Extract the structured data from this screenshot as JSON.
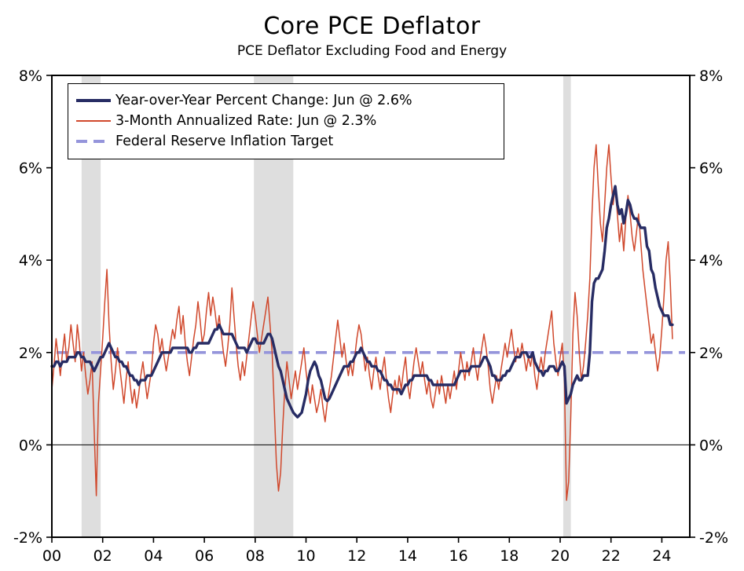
{
  "header": {
    "title": "Core PCE Deflator",
    "subtitle": "PCE Deflator Excluding Food and Energy"
  },
  "legend": {
    "items": [
      {
        "id": "yoy",
        "label": "Year-over-Year Percent Change: Jun @ 2.6%"
      },
      {
        "id": "m3",
        "label": "3-Month Annualized Rate: Jun @ 2.3%"
      },
      {
        "id": "target",
        "label": "Federal Reserve Inflation Target"
      }
    ]
  },
  "chart_data": {
    "type": "line",
    "title": "Core PCE Deflator",
    "subtitle": "PCE Deflator Excluding Food and Energy",
    "x_frequency": "monthly",
    "x_start_year": 2000,
    "x_end_label": "Jun 2024",
    "x_range": [
      2000,
      2025.1
    ],
    "y_range": [
      -2,
      8
    ],
    "y_ticks": [
      -2,
      0,
      2,
      4,
      6,
      8
    ],
    "y_tick_suffix": "%",
    "x_tick_years": [
      2000,
      2002,
      2004,
      2006,
      2008,
      2010,
      2012,
      2014,
      2016,
      2018,
      2020,
      2022,
      2024
    ],
    "x_tick_labels": [
      "00",
      "02",
      "04",
      "06",
      "08",
      "10",
      "12",
      "14",
      "16",
      "18",
      "20",
      "22",
      "24"
    ],
    "grid": false,
    "legend_position": "top-left-inside",
    "recessions": [
      [
        2001.17,
        2001.92
      ],
      [
        2007.95,
        2009.5
      ],
      [
        2020.12,
        2020.42
      ]
    ],
    "target": {
      "name": "Federal Reserve Inflation Target",
      "value": 2,
      "color": "#9595db",
      "dash": [
        14,
        8
      ]
    },
    "colors": {
      "recession": "#dedede",
      "axis": "#000000"
    },
    "series": [
      {
        "id": "yoy",
        "name": "Year-over-Year Percent Change",
        "latest": "Jun @ 2.6%",
        "color": "#272c64",
        "width": 3.4,
        "values": [
          1.7,
          1.7,
          1.8,
          1.8,
          1.7,
          1.8,
          1.8,
          1.8,
          1.9,
          1.9,
          1.9,
          1.9,
          2.0,
          2.0,
          1.9,
          1.9,
          1.8,
          1.8,
          1.8,
          1.7,
          1.6,
          1.7,
          1.8,
          1.9,
          1.9,
          2.0,
          2.1,
          2.2,
          2.1,
          2.0,
          1.9,
          1.9,
          1.8,
          1.8,
          1.7,
          1.7,
          1.6,
          1.5,
          1.5,
          1.4,
          1.4,
          1.3,
          1.4,
          1.4,
          1.4,
          1.5,
          1.5,
          1.5,
          1.6,
          1.7,
          1.8,
          1.9,
          2.0,
          2.0,
          2.0,
          2.0,
          2.0,
          2.1,
          2.1,
          2.1,
          2.1,
          2.1,
          2.1,
          2.1,
          2.1,
          2.0,
          2.0,
          2.1,
          2.1,
          2.2,
          2.2,
          2.2,
          2.2,
          2.2,
          2.2,
          2.3,
          2.4,
          2.5,
          2.5,
          2.6,
          2.5,
          2.4,
          2.4,
          2.4,
          2.4,
          2.4,
          2.3,
          2.2,
          2.1,
          2.1,
          2.1,
          2.1,
          2.0,
          2.1,
          2.2,
          2.3,
          2.3,
          2.2,
          2.2,
          2.2,
          2.2,
          2.3,
          2.4,
          2.4,
          2.3,
          2.1,
          1.9,
          1.7,
          1.6,
          1.4,
          1.2,
          1.0,
          0.9,
          0.8,
          0.7,
          0.65,
          0.6,
          0.65,
          0.7,
          0.9,
          1.1,
          1.4,
          1.6,
          1.7,
          1.8,
          1.7,
          1.5,
          1.4,
          1.2,
          1.0,
          0.95,
          1.0,
          1.1,
          1.2,
          1.3,
          1.4,
          1.5,
          1.6,
          1.7,
          1.7,
          1.7,
          1.8,
          1.8,
          1.9,
          2.0,
          2.0,
          2.1,
          2.0,
          1.9,
          1.8,
          1.8,
          1.7,
          1.7,
          1.7,
          1.6,
          1.6,
          1.5,
          1.4,
          1.4,
          1.3,
          1.3,
          1.2,
          1.2,
          1.2,
          1.2,
          1.1,
          1.2,
          1.3,
          1.3,
          1.4,
          1.4,
          1.5,
          1.5,
          1.5,
          1.5,
          1.5,
          1.5,
          1.5,
          1.4,
          1.4,
          1.3,
          1.3,
          1.3,
          1.3,
          1.3,
          1.3,
          1.3,
          1.3,
          1.3,
          1.3,
          1.3,
          1.4,
          1.5,
          1.6,
          1.6,
          1.6,
          1.6,
          1.6,
          1.7,
          1.7,
          1.7,
          1.7,
          1.7,
          1.8,
          1.9,
          1.9,
          1.8,
          1.7,
          1.5,
          1.5,
          1.4,
          1.4,
          1.4,
          1.5,
          1.5,
          1.6,
          1.6,
          1.7,
          1.8,
          1.9,
          1.9,
          1.9,
          2.0,
          2.0,
          2.0,
          1.9,
          1.9,
          2.0,
          1.8,
          1.7,
          1.6,
          1.6,
          1.5,
          1.6,
          1.6,
          1.7,
          1.7,
          1.7,
          1.6,
          1.6,
          1.7,
          1.8,
          1.7,
          0.9,
          1.0,
          1.1,
          1.3,
          1.4,
          1.5,
          1.4,
          1.4,
          1.5,
          1.5,
          1.5,
          2.0,
          3.1,
          3.5,
          3.6,
          3.6,
          3.7,
          3.8,
          4.2,
          4.7,
          4.9,
          5.2,
          5.4,
          5.6,
          5.2,
          5.0,
          5.1,
          4.8,
          5.0,
          5.3,
          5.2,
          5.0,
          4.9,
          4.9,
          4.8,
          4.7,
          4.7,
          4.7,
          4.3,
          4.2,
          3.8,
          3.7,
          3.4,
          3.2,
          3.0,
          2.9,
          2.8,
          2.8,
          2.8,
          2.6,
          2.6
        ]
      },
      {
        "id": "m3",
        "name": "3-Month Annualized Rate",
        "latest": "Jun @ 2.3%",
        "color": "#d0482c",
        "width": 1.5,
        "values": [
          1.2,
          1.7,
          2.3,
          1.9,
          1.5,
          2.0,
          2.4,
          1.8,
          2.1,
          2.6,
          2.2,
          1.8,
          2.6,
          2.2,
          1.6,
          2.0,
          1.5,
          1.1,
          1.4,
          1.8,
          0.3,
          -1.1,
          0.9,
          1.6,
          2.3,
          3.1,
          3.8,
          2.6,
          1.8,
          1.2,
          1.6,
          2.1,
          1.7,
          1.3,
          0.9,
          1.4,
          1.8,
          1.3,
          0.9,
          1.2,
          0.8,
          1.1,
          1.5,
          1.8,
          1.4,
          1.0,
          1.3,
          1.6,
          2.2,
          2.6,
          2.4,
          2.0,
          2.3,
          1.9,
          1.6,
          1.9,
          2.2,
          2.5,
          2.3,
          2.7,
          3.0,
          2.4,
          2.8,
          2.2,
          1.8,
          1.5,
          1.9,
          2.3,
          2.6,
          3.1,
          2.7,
          2.2,
          2.4,
          2.9,
          3.3,
          2.8,
          3.2,
          2.9,
          2.5,
          2.8,
          2.4,
          2.0,
          1.7,
          2.1,
          2.6,
          3.4,
          2.8,
          2.2,
          1.7,
          1.4,
          1.8,
          1.5,
          1.9,
          2.3,
          2.7,
          3.1,
          2.8,
          2.4,
          2.0,
          2.3,
          2.6,
          2.9,
          3.2,
          2.6,
          2.0,
          0.8,
          -0.4,
          -1.0,
          -0.6,
          0.4,
          1.2,
          1.8,
          1.4,
          1.0,
          1.3,
          1.6,
          1.2,
          1.5,
          1.8,
          2.1,
          1.6,
          1.2,
          0.9,
          1.3,
          1.0,
          0.7,
          0.9,
          1.2,
          0.8,
          0.5,
          0.9,
          1.2,
          1.5,
          1.9,
          2.3,
          2.7,
          2.3,
          1.9,
          2.2,
          1.8,
          1.5,
          1.8,
          1.5,
          1.9,
          2.3,
          2.6,
          2.4,
          2.0,
          1.6,
          1.9,
          1.5,
          1.2,
          1.6,
          1.9,
          1.5,
          1.2,
          1.6,
          1.9,
          1.4,
          1.0,
          0.7,
          1.1,
          1.4,
          1.1,
          1.5,
          1.2,
          1.6,
          1.9,
          1.3,
          1.0,
          1.4,
          1.8,
          2.1,
          1.8,
          1.5,
          1.8,
          1.4,
          1.1,
          1.4,
          1.0,
          0.8,
          1.1,
          1.4,
          1.1,
          1.5,
          1.2,
          0.9,
          1.3,
          1.0,
          1.3,
          1.6,
          1.2,
          1.6,
          2.0,
          1.7,
          1.4,
          1.8,
          1.5,
          1.8,
          2.1,
          1.7,
          1.4,
          1.8,
          2.1,
          2.4,
          2.1,
          1.7,
          1.2,
          0.9,
          1.2,
          1.5,
          1.2,
          1.6,
          1.9,
          2.2,
          1.9,
          2.2,
          2.5,
          2.1,
          1.8,
          2.1,
          1.9,
          2.2,
          1.9,
          1.6,
          1.9,
          1.7,
          2.0,
          1.5,
          1.2,
          1.6,
          1.9,
          1.6,
          2.0,
          2.3,
          2.6,
          2.9,
          2.2,
          1.8,
          1.5,
          1.9,
          2.2,
          1.4,
          -1.2,
          -0.8,
          0.6,
          2.4,
          3.3,
          2.8,
          2.0,
          1.4,
          1.7,
          2.2,
          2.8,
          3.6,
          5.0,
          6.0,
          6.5,
          5.6,
          4.8,
          4.4,
          5.2,
          6.0,
          6.5,
          5.8,
          5.2,
          5.6,
          5.0,
          4.4,
          4.8,
          4.2,
          4.9,
          5.4,
          5.0,
          4.5,
          4.2,
          4.6,
          5.0,
          4.4,
          3.8,
          3.4,
          3.0,
          2.6,
          2.2,
          2.4,
          2.0,
          1.6,
          1.9,
          2.5,
          3.2,
          4.0,
          4.4,
          3.5,
          2.3
        ]
      }
    ]
  }
}
